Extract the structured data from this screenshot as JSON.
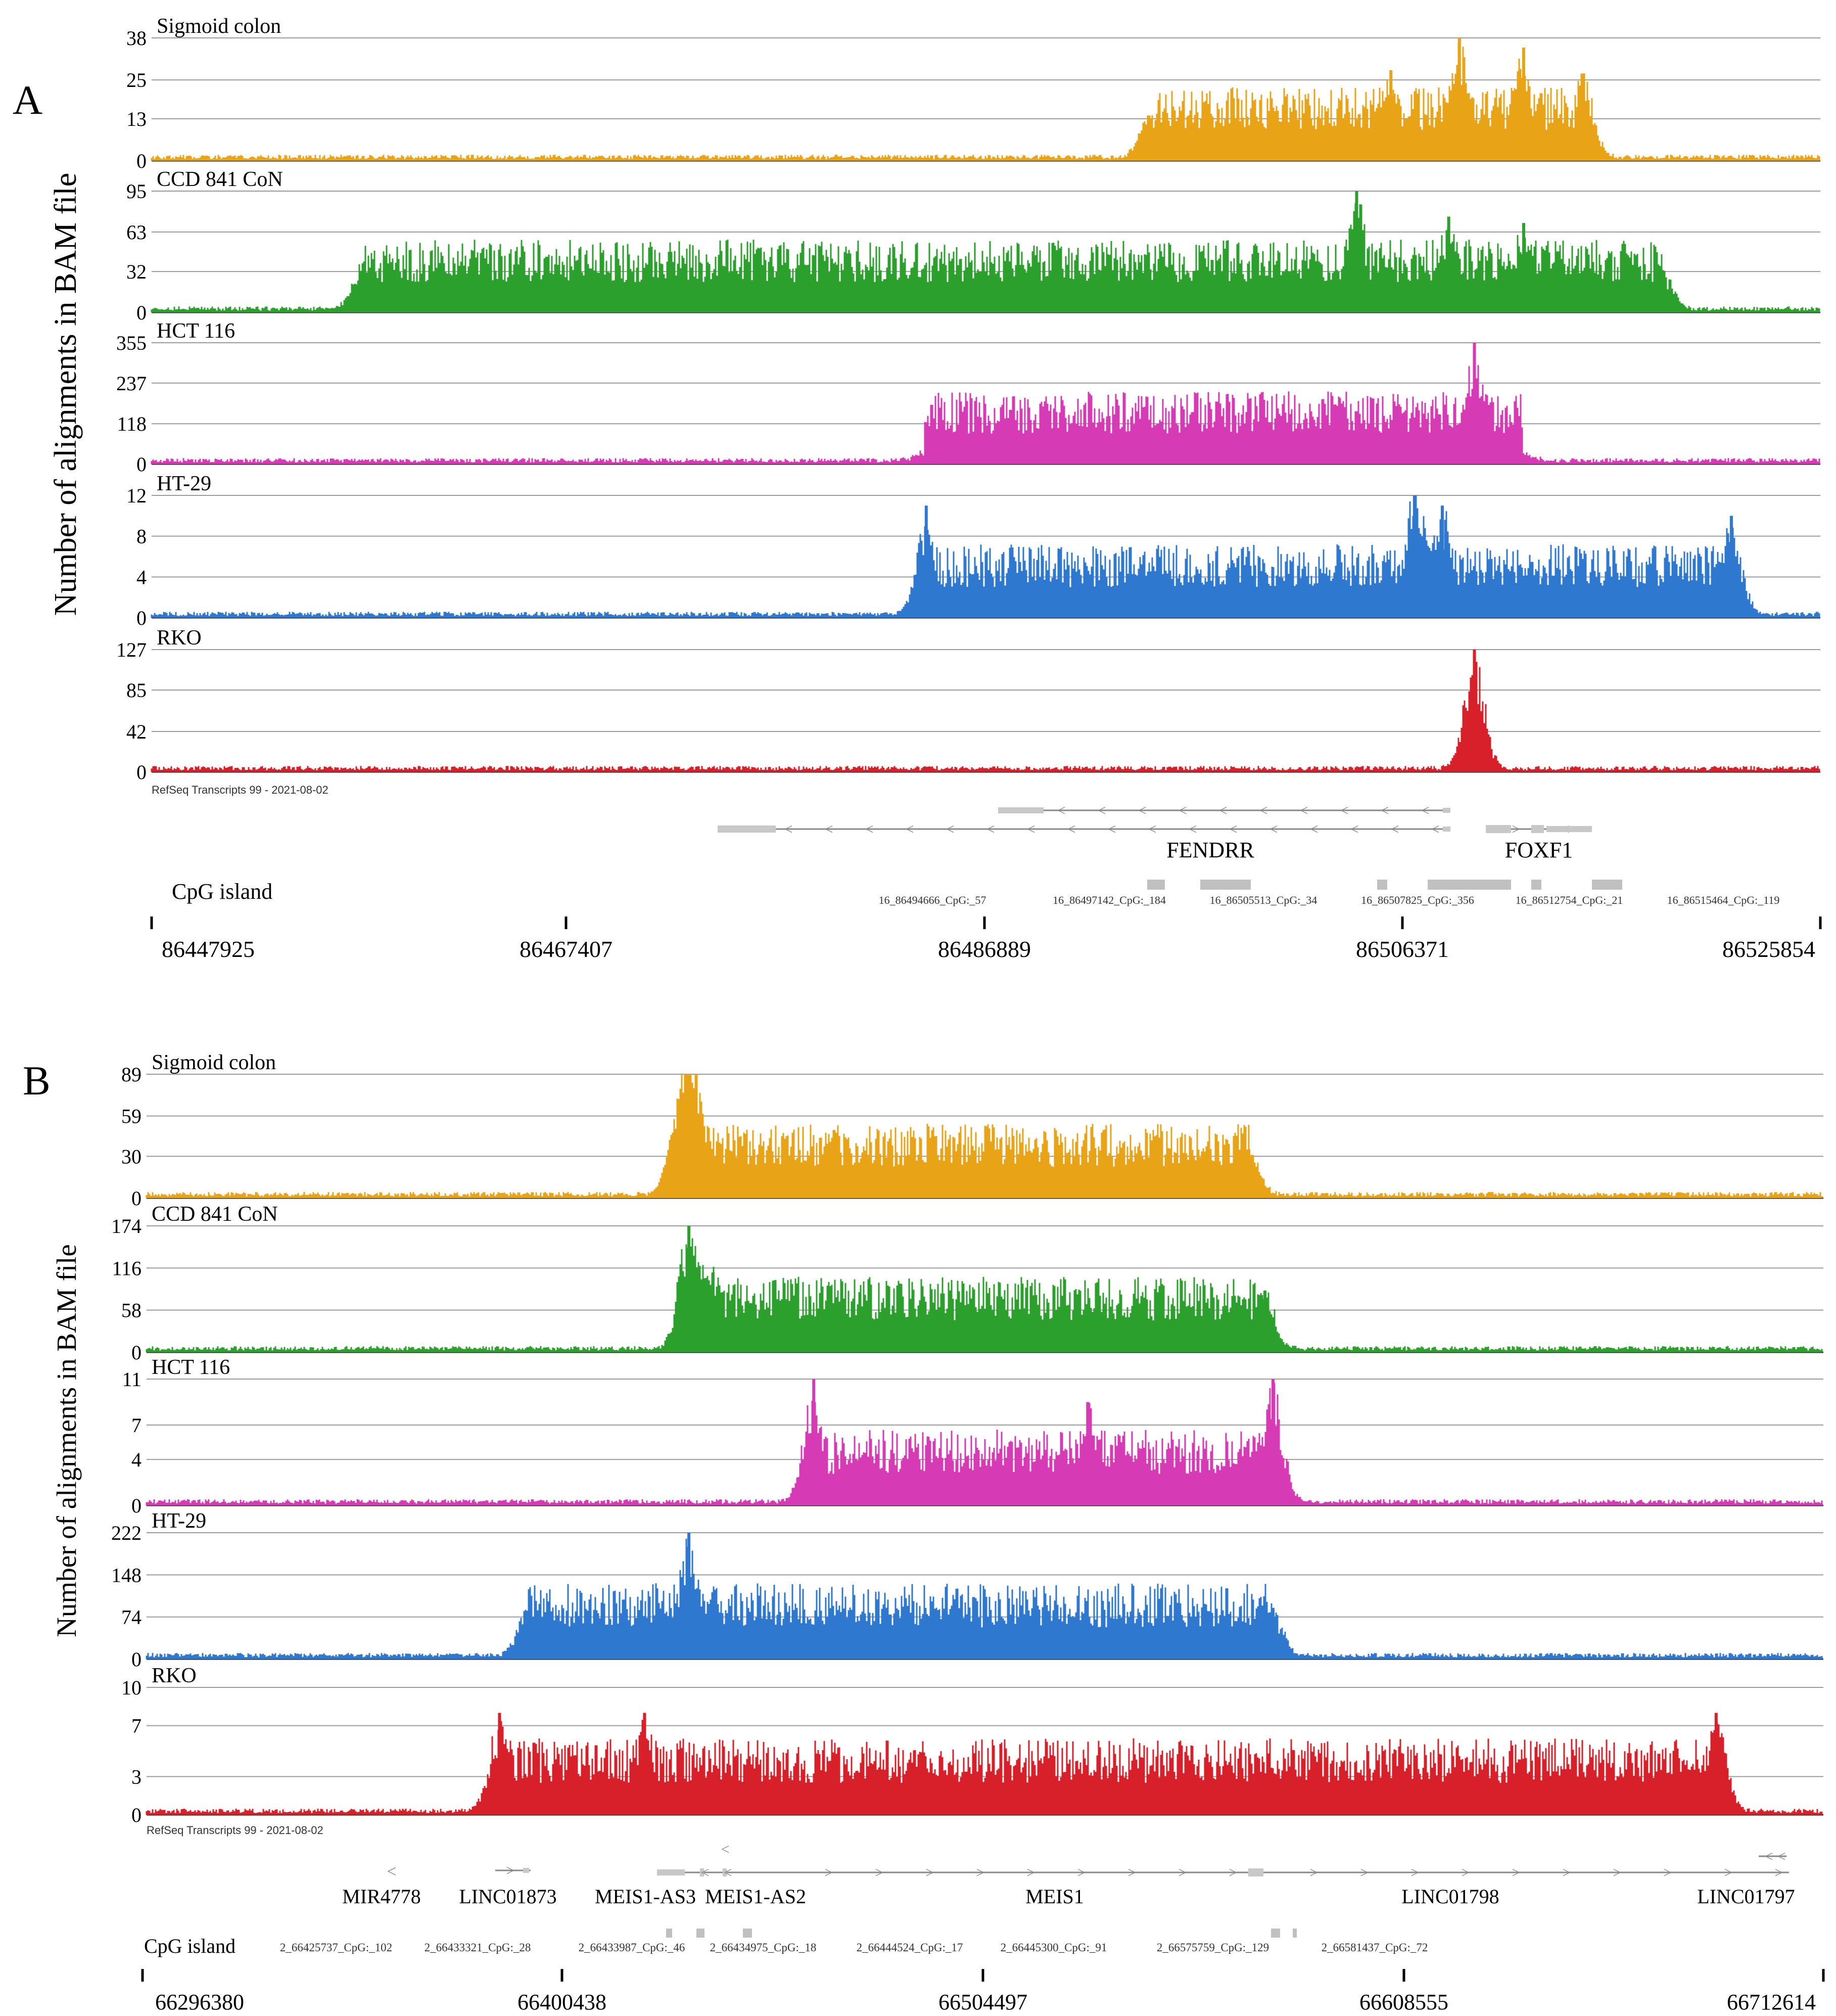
{
  "figure": {
    "ylabel": "Number of alignments in BAM file",
    "cpg_label": "CpG island",
    "refseq_label": "RefSeq Transcripts 99 - 2021-08-02"
  },
  "chart_data": [
    {
      "panel": "A",
      "type": "area",
      "ylabel": "Number of alignments in BAM file",
      "x_ticks": [
        86447925,
        86467407,
        86486889,
        86506371,
        86525854
      ],
      "xlim": [
        86447925,
        86525854
      ],
      "series": [
        {
          "name": "Sigmoid colon",
          "color": "#E8A317",
          "yticks": [
            0,
            13,
            25,
            38
          ],
          "ylim": [
            0,
            38
          ],
          "peaks": [
            {
              "x": 86494500,
              "y": 14
            },
            {
              "x": 86505800,
              "y": 28
            },
            {
              "x": 86509000,
              "y": 38
            },
            {
              "x": 86512000,
              "y": 35
            },
            {
              "x": 86514800,
              "y": 27
            }
          ]
        },
        {
          "name": "CCD 841 CoN",
          "color": "#2CA02C",
          "yticks": [
            0,
            32,
            63,
            95
          ],
          "ylim": [
            0,
            95
          ],
          "peaks": [
            {
              "x": 86457600,
              "y": 25
            },
            {
              "x": 86497000,
              "y": 40
            },
            {
              "x": 86504200,
              "y": 95
            },
            {
              "x": 86508500,
              "y": 75
            },
            {
              "x": 86512000,
              "y": 70
            },
            {
              "x": 86518500,
              "y": 32
            }
          ]
        },
        {
          "name": "HCT 116",
          "color": "#D63AB4",
          "yticks": [
            0,
            118,
            237,
            355
          ],
          "ylim": [
            0,
            355
          ],
          "peaks": [
            {
              "x": 86484000,
              "y": 25
            },
            {
              "x": 86509700,
              "y": 355
            },
            {
              "x": 86512000,
              "y": 25
            }
          ]
        },
        {
          "name": "HT-29",
          "color": "#2F78D0",
          "yticks": [
            0,
            4,
            8,
            12
          ],
          "ylim": [
            0,
            12
          ],
          "peaks": [
            {
              "x": 86484100,
              "y": 11
            },
            {
              "x": 86506900,
              "y": 12
            },
            {
              "x": 86508200,
              "y": 11
            },
            {
              "x": 86521700,
              "y": 10
            }
          ]
        },
        {
          "name": "RKO",
          "color": "#D8202A",
          "yticks": [
            0,
            42,
            85,
            127
          ],
          "ylim": [
            0,
            127
          ],
          "peaks": [
            {
              "x": 86509700,
              "y": 127
            }
          ]
        }
      ],
      "genes": [
        {
          "name": "FENDRR",
          "labeled": true
        },
        {
          "name": "FOXF1",
          "labeled": true
        }
      ],
      "cpg_islands": [
        "16_86494666_CpG:_57",
        "16_86497142_CpG:_184",
        "16_86505513_CpG:_34",
        "16_86507825_CpG:_356",
        "16_86512754_CpG:_21",
        "16_86515464_CpG:_119"
      ]
    },
    {
      "panel": "B",
      "type": "area",
      "ylabel": "Number of alignments in BAM file",
      "x_ticks": [
        66296380,
        66400438,
        66504497,
        66608555,
        66712614
      ],
      "xlim": [
        66296380,
        66712614
      ],
      "series": [
        {
          "name": "Sigmoid colon",
          "color": "#E8A317",
          "yticks": [
            0,
            30,
            59,
            89
          ],
          "ylim": [
            0,
            89
          ],
          "peaks": [
            {
              "x": 66428000,
              "y": 40
            },
            {
              "x": 66431000,
              "y": 89
            },
            {
              "x": 66435000,
              "y": 40
            },
            {
              "x": 66570000,
              "y": 35
            }
          ]
        },
        {
          "name": "CCD 841 CoN",
          "color": "#2CA02C",
          "yticks": [
            0,
            58,
            116,
            174
          ],
          "ylim": [
            0,
            174
          ],
          "peaks": [
            {
              "x": 66431000,
              "y": 174
            },
            {
              "x": 66437000,
              "y": 110
            },
            {
              "x": 66565000,
              "y": 55
            },
            {
              "x": 66574000,
              "y": 85
            }
          ]
        },
        {
          "name": "HCT 116",
          "color": "#D63AB4",
          "yticks": [
            0,
            4,
            7,
            11
          ],
          "ylim": [
            0,
            11
          ],
          "peaks": [
            {
              "x": 66462000,
              "y": 11
            },
            {
              "x": 66576000,
              "y": 11
            },
            {
              "x": 66530000,
              "y": 9
            }
          ]
        },
        {
          "name": "HT-29",
          "color": "#2F78D0",
          "yticks": [
            0,
            74,
            148,
            222
          ],
          "ylim": [
            0,
            222
          ],
          "peaks": [
            {
              "x": 66391000,
              "y": 85
            },
            {
              "x": 66431000,
              "y": 222
            },
            {
              "x": 66576000,
              "y": 90
            }
          ]
        },
        {
          "name": "RKO",
          "color": "#D8202A",
          "yticks": [
            0,
            3,
            7,
            10
          ],
          "ylim": [
            0,
            10
          ],
          "peaks": [
            {
              "x": 66384000,
              "y": 8
            },
            {
              "x": 66420000,
              "y": 8
            },
            {
              "x": 66686000,
              "y": 8
            }
          ]
        }
      ],
      "genes": [
        {
          "name": "MIR4778"
        },
        {
          "name": "LINC01873"
        },
        {
          "name": "MEIS1-AS3"
        },
        {
          "name": "MEIS1-AS2"
        },
        {
          "name": "MEIS1"
        },
        {
          "name": "LINC01798"
        },
        {
          "name": "LINC01797"
        }
      ],
      "cpg_islands": [
        "2_66425737_CpG:_102",
        "2_66433321_CpG:_28",
        "2_66433987_CpG:_46",
        "2_66434975_CpG:_18",
        "2_66444524_CpG:_17",
        "2_66445300_CpG:_91",
        "2_66575759_CpG:_129",
        "2_66581437_CpG:_72"
      ]
    }
  ]
}
